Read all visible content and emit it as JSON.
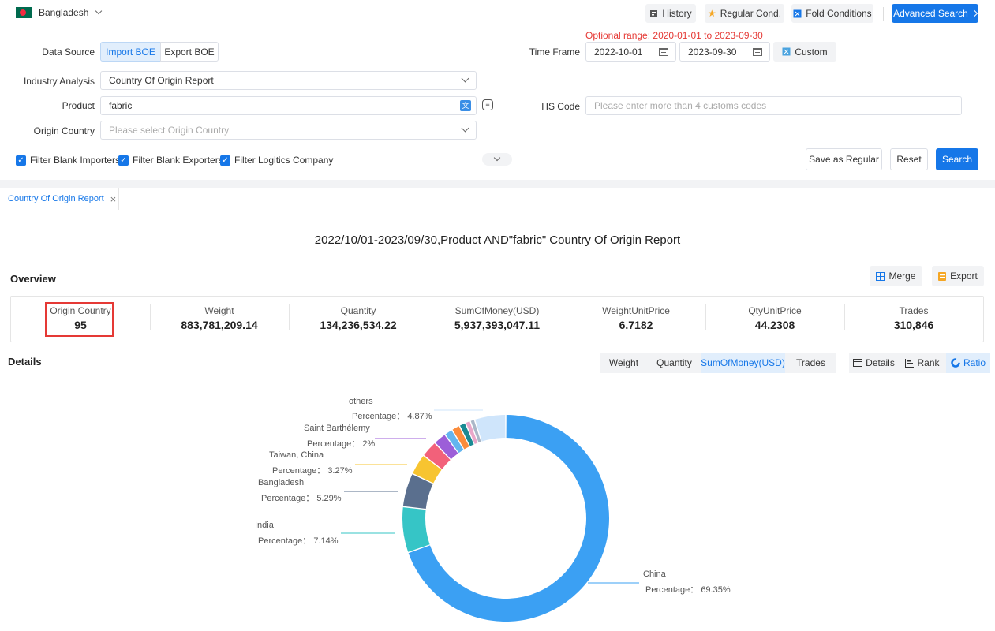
{
  "topbar": {
    "country": "Bangladesh",
    "history": "History",
    "regular": "Regular Cond.",
    "fold": "Fold Conditions",
    "advanced": "Advanced Search"
  },
  "form": {
    "optional_range_label": "Optional range:",
    "optional_range_value": "2020-01-01 to 2023-09-30",
    "data_source_label": "Data Source",
    "import_boe": "Import BOE",
    "export_boe": "Export BOE",
    "time_frame_label": "Time Frame",
    "date_start": "2022-10-01",
    "date_end": "2023-09-30",
    "custom": "Custom",
    "industry_label": "Industry Analysis",
    "industry_value": "Country Of Origin Report",
    "product_label": "Product",
    "product_value": "fabric",
    "hs_label": "HS Code",
    "hs_placeholder": "Please enter more than 4 customs codes",
    "origin_label": "Origin Country",
    "origin_placeholder": "Please select Origin Country",
    "filter1": "Filter Blank Importers",
    "filter2": "Filter Blank Exporters",
    "filter3": "Filter Logitics Company",
    "save_regular": "Save as Regular",
    "reset": "Reset",
    "search": "Search"
  },
  "tab": {
    "label": "Country Of Origin Report"
  },
  "report": {
    "title": "2022/10/01-2023/09/30,Product AND\"fabric\" Country Of Origin Report",
    "overview": "Overview",
    "merge": "Merge",
    "export": "Export",
    "stats": [
      {
        "title": "Origin Country",
        "value": "95"
      },
      {
        "title": "Weight",
        "value": "883,781,209.14"
      },
      {
        "title": "Quantity",
        "value": "134,236,534.22"
      },
      {
        "title": "SumOfMoney(USD)",
        "value": "5,937,393,047.11"
      },
      {
        "title": "WeightUnitPrice",
        "value": "6.7182"
      },
      {
        "title": "QtyUnitPrice",
        "value": "44.2308"
      },
      {
        "title": "Trades",
        "value": "310,846"
      }
    ],
    "details": "Details",
    "metric_tabs": [
      "Weight",
      "Quantity",
      "SumOfMoney(USD)",
      "Trades"
    ],
    "view_tabs": [
      "Details",
      "Rank",
      "Ratio"
    ]
  },
  "chart_data": {
    "type": "pie",
    "percentage_label": "Percentage：",
    "slices": [
      {
        "name": "China",
        "value": 69.35,
        "color": "#3ba0f3",
        "label": true
      },
      {
        "name": "India",
        "value": 7.14,
        "color": "#36c5c6",
        "label": true
      },
      {
        "name": "Bangladesh",
        "value": 5.29,
        "color": "#5a6f8e",
        "label": true
      },
      {
        "name": "Taiwan, China",
        "value": 3.27,
        "color": "#f7c430",
        "label": true
      },
      {
        "name": "",
        "value": 2.6,
        "color": "#f2617a",
        "label": false
      },
      {
        "name": "Saint Barthélemy",
        "value": 2,
        "color": "#9c5ed8",
        "label": true
      },
      {
        "name": "",
        "value": 1.3,
        "color": "#63b5ef",
        "label": false
      },
      {
        "name": "",
        "value": 1.3,
        "color": "#fb8c3c",
        "label": false
      },
      {
        "name": "",
        "value": 1.0,
        "color": "#1b8a93",
        "label": false
      },
      {
        "name": "",
        "value": 0.8,
        "color": "#e9a7c9",
        "label": false
      },
      {
        "name": "",
        "value": 0.7,
        "color": "#aab7c8",
        "label": false
      },
      {
        "name": "others",
        "value": 4.87,
        "color": "#cfe5fb",
        "label": true
      }
    ]
  }
}
